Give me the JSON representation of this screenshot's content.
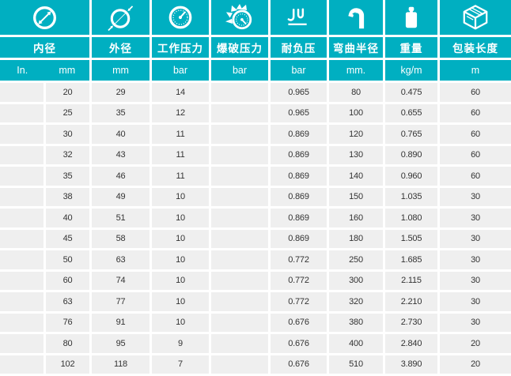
{
  "colors": {
    "accent": "#00afc1",
    "row_background": "#efefef",
    "grid_line": "#ffffff",
    "cell_text": "#333333"
  },
  "header": {
    "groups": [
      {
        "label": "内径",
        "icon": "inner-diameter-icon",
        "units": [
          "In.",
          "mm"
        ]
      },
      {
        "label": "外径",
        "icon": "outer-diameter-icon",
        "units": [
          "mm"
        ]
      },
      {
        "label": "工作压力",
        "icon": "working-pressure-gauge-icon",
        "units": [
          "bar"
        ]
      },
      {
        "label": "爆破压力",
        "icon": "burst-pressure-gauge-icon",
        "units": [
          "bar"
        ]
      },
      {
        "label": "耐负压",
        "icon": "vacuum-resistance-icon",
        "units": [
          "bar"
        ]
      },
      {
        "label": "弯曲半径",
        "icon": "bend-radius-icon",
        "units": [
          "mm."
        ]
      },
      {
        "label": "重量",
        "icon": "weight-icon",
        "units": [
          "kg/m"
        ]
      },
      {
        "label": "包装长度",
        "icon": "package-box-icon",
        "units": [
          "m"
        ]
      }
    ]
  },
  "rows": [
    [
      "",
      "20",
      "29",
      "14",
      "",
      "0.965",
      "80",
      "0.475",
      "60"
    ],
    [
      "",
      "25",
      "35",
      "12",
      "",
      "0.965",
      "100",
      "0.655",
      "60"
    ],
    [
      "",
      "30",
      "40",
      "11",
      "",
      "0.869",
      "120",
      "0.765",
      "60"
    ],
    [
      "",
      "32",
      "43",
      "11",
      "",
      "0.869",
      "130",
      "0.890",
      "60"
    ],
    [
      "",
      "35",
      "46",
      "11",
      "",
      "0.869",
      "140",
      "0.960",
      "60"
    ],
    [
      "",
      "38",
      "49",
      "10",
      "",
      "0.869",
      "150",
      "1.035",
      "30"
    ],
    [
      "",
      "40",
      "51",
      "10",
      "",
      "0.869",
      "160",
      "1.080",
      "30"
    ],
    [
      "",
      "45",
      "58",
      "10",
      "",
      "0.869",
      "180",
      "1.505",
      "30"
    ],
    [
      "",
      "50",
      "63",
      "10",
      "",
      "0.772",
      "250",
      "1.685",
      "30"
    ],
    [
      "",
      "60",
      "74",
      "10",
      "",
      "0.772",
      "300",
      "2.115",
      "30"
    ],
    [
      "",
      "63",
      "77",
      "10",
      "",
      "0.772",
      "320",
      "2.210",
      "30"
    ],
    [
      "",
      "76",
      "91",
      "10",
      "",
      "0.676",
      "380",
      "2.730",
      "30"
    ],
    [
      "",
      "80",
      "95",
      "9",
      "",
      "0.676",
      "400",
      "2.840",
      "20"
    ],
    [
      "",
      "102",
      "118",
      "7",
      "",
      "0.676",
      "510",
      "3.890",
      "20"
    ]
  ]
}
